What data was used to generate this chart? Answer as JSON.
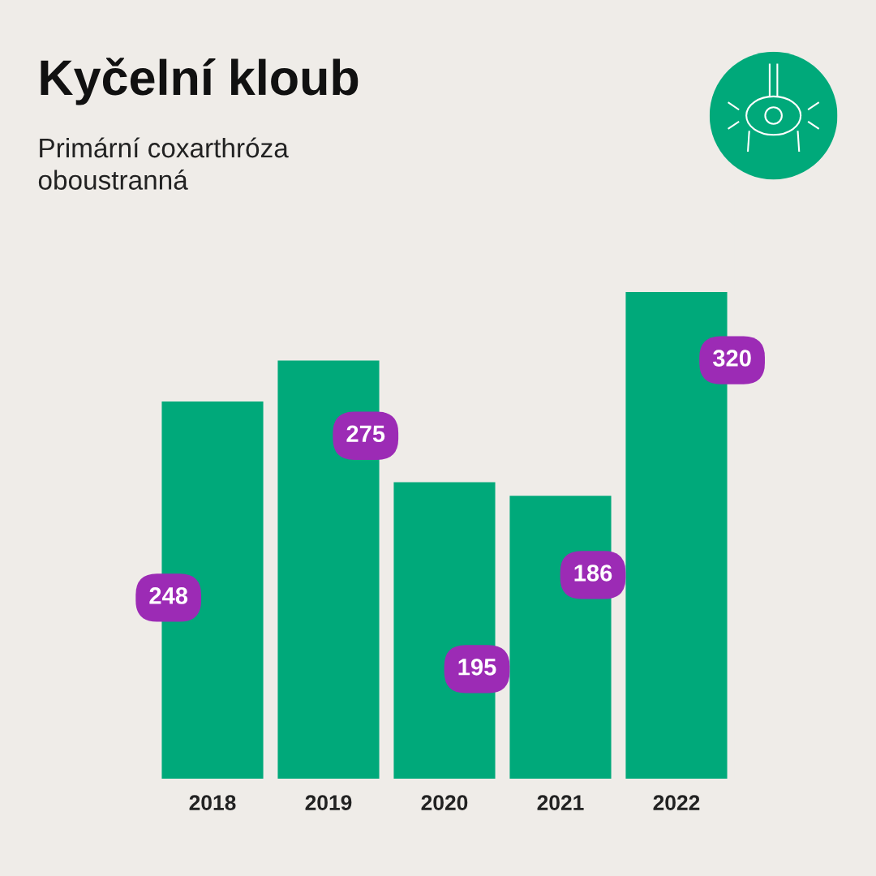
{
  "chart_data": {
    "type": "bar",
    "title": "Kyčelní kloub",
    "subtitle": "Primární coxarthróza\noboustranná",
    "categories": [
      "2018",
      "2019",
      "2020",
      "2021",
      "2022"
    ],
    "values": [
      248,
      275,
      195,
      186,
      320
    ],
    "color": "#00a97a",
    "data_labels": true,
    "grid": false,
    "legend": false
  }
}
